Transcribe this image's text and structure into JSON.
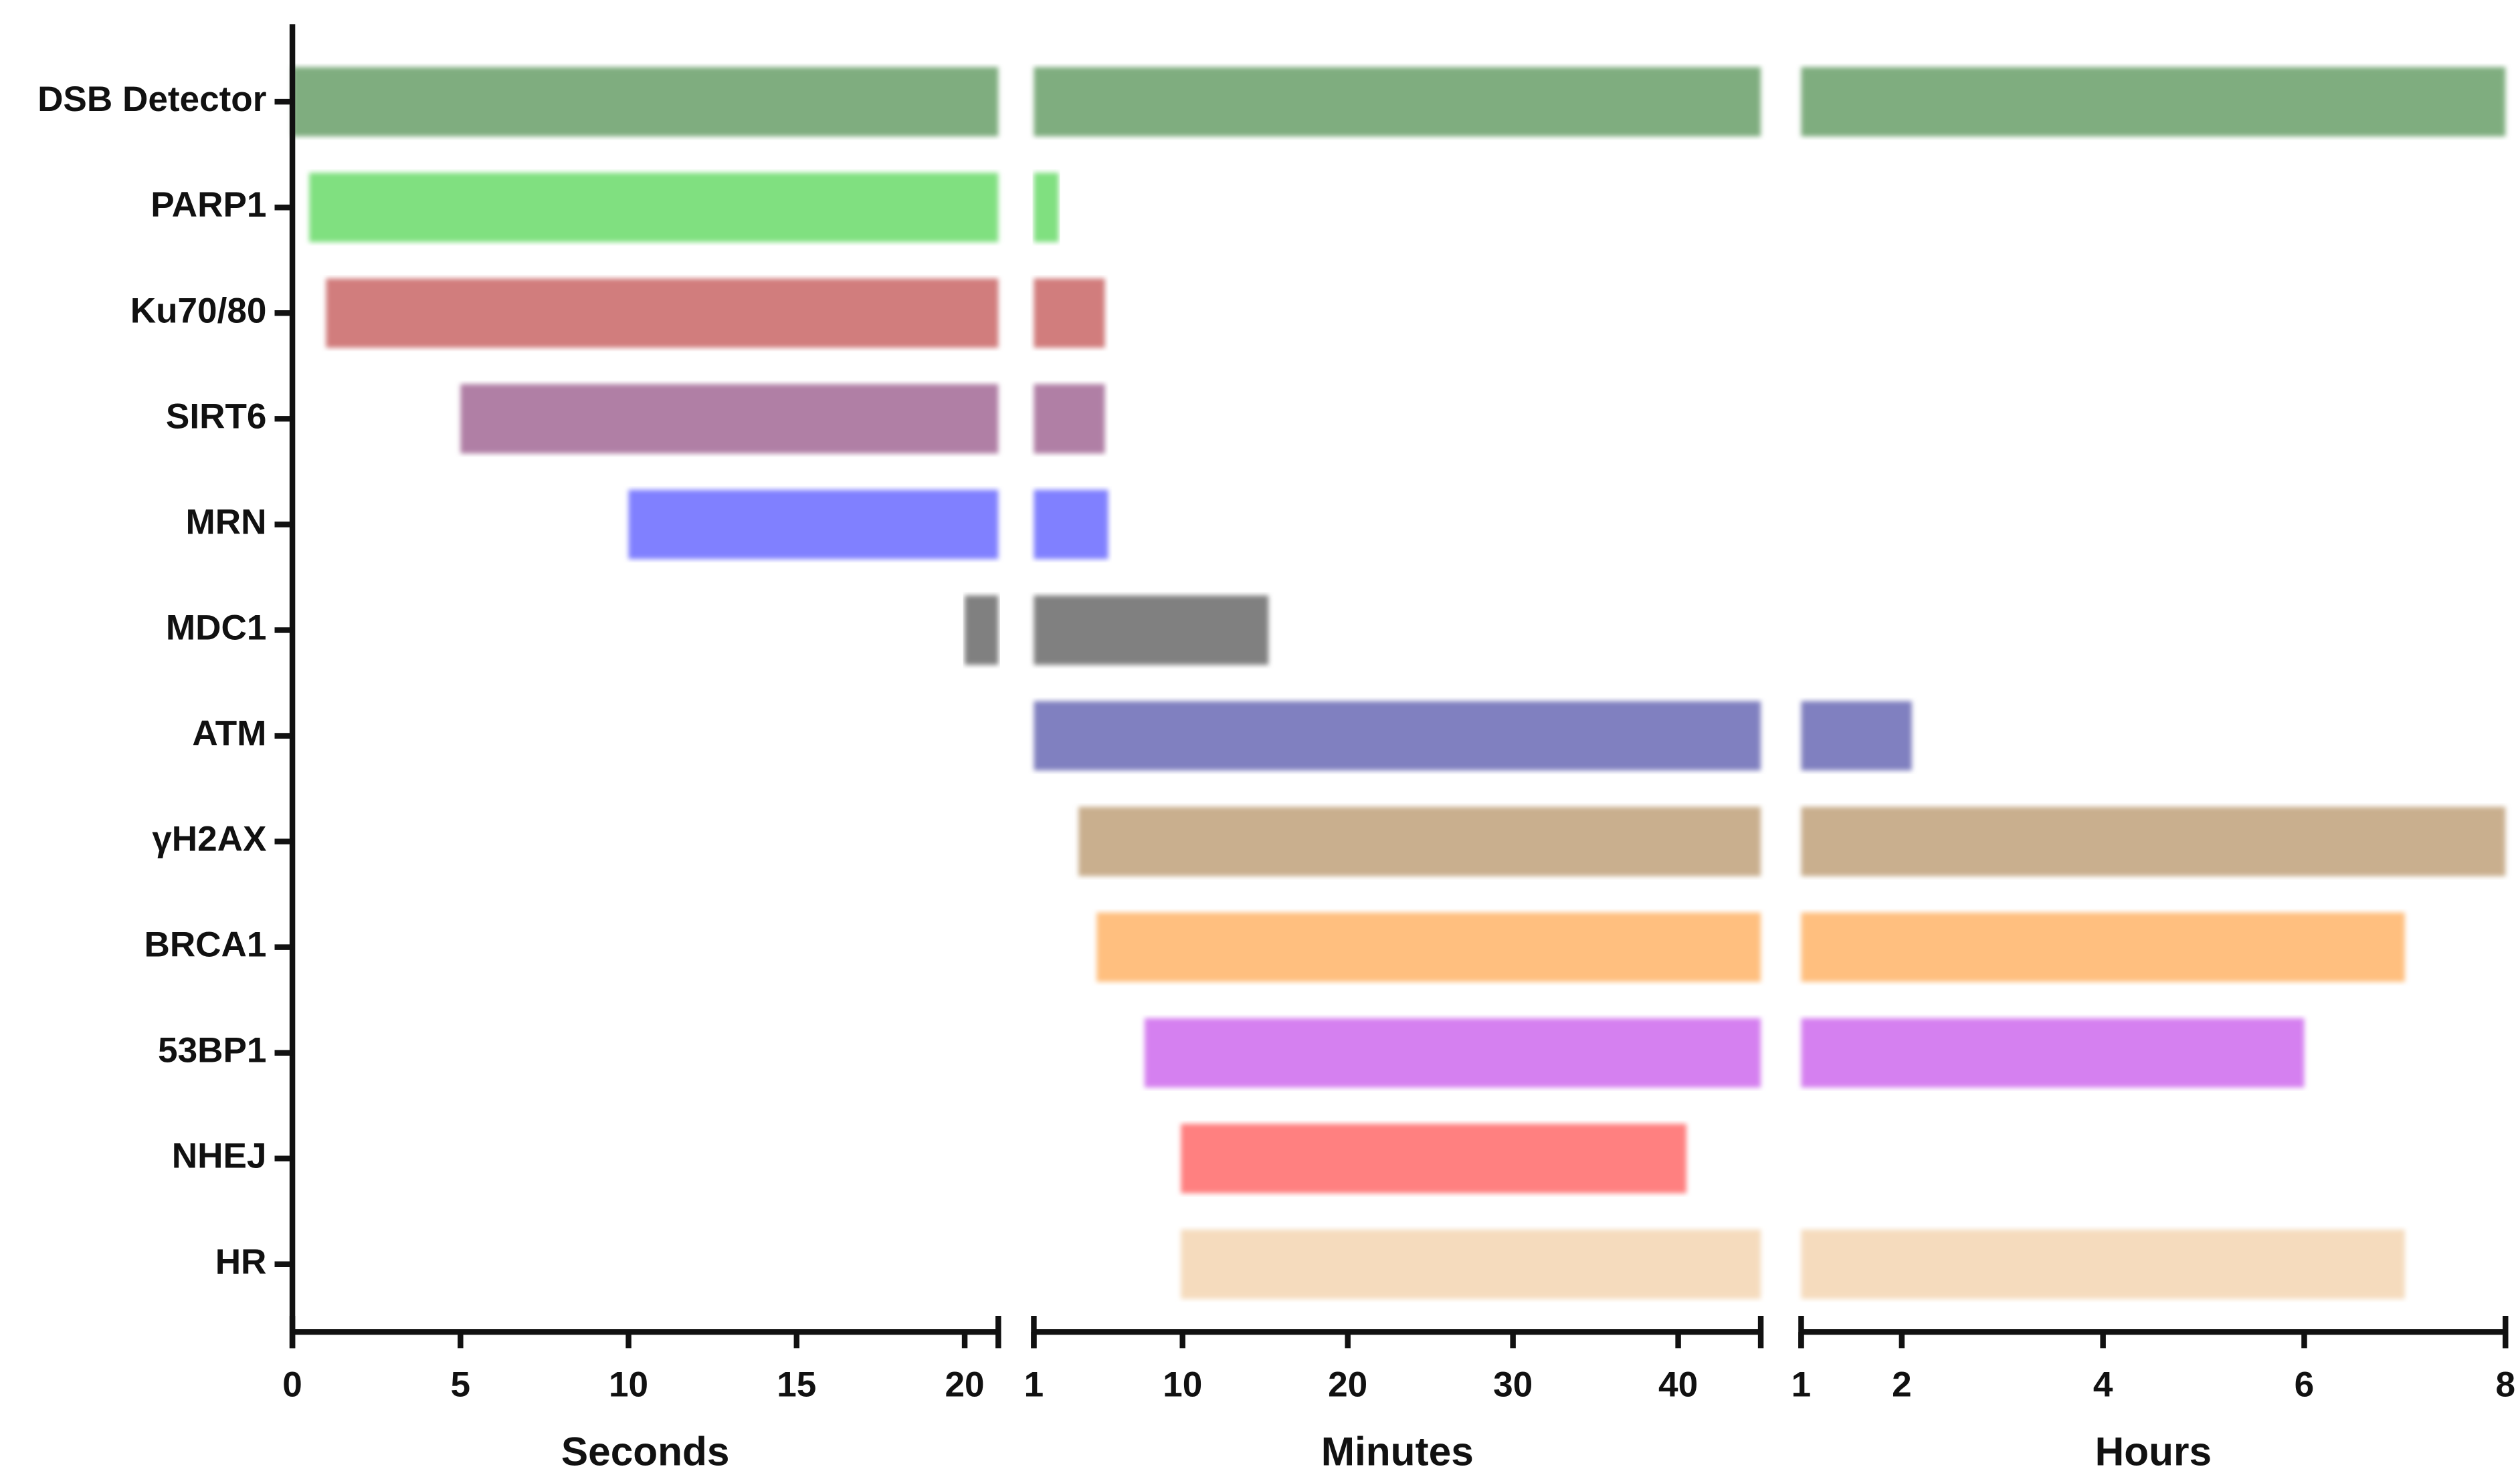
{
  "chart_data": {
    "type": "timeline",
    "categories": [
      "DSB Detector",
      "PARP1",
      "Ku70/80",
      "SIRT6",
      "MRN",
      "MDC1",
      "ATM",
      "γH2AX",
      "BRCA1",
      "53BP1",
      "NHEJ",
      "HR"
    ],
    "panels": [
      {
        "xlabel": "Seconds",
        "xlim": [
          0,
          21
        ],
        "xticks": [
          0,
          5,
          10,
          15,
          20
        ]
      },
      {
        "xlabel": "Minutes",
        "xlim": [
          1,
          45
        ],
        "xticks": [
          1,
          10,
          20,
          30,
          40
        ]
      },
      {
        "xlabel": "Hours",
        "xlim": [
          1,
          8
        ],
        "xticks": [
          1,
          2,
          4,
          6,
          8
        ]
      }
    ],
    "tasks": [
      {
        "color": "#7fad7f",
        "ranges": [
          [
            0,
            21
          ],
          [
            1,
            45
          ],
          [
            1,
            8
          ]
        ]
      },
      {
        "color": "#80e080",
        "ranges": [
          [
            0.5,
            21
          ],
          [
            1,
            2.5
          ],
          null
        ]
      },
      {
        "color": "#d17d7d",
        "ranges": [
          [
            1,
            21
          ],
          [
            1,
            5.3
          ],
          null
        ]
      },
      {
        "color": "#b07fa5",
        "ranges": [
          [
            5,
            21
          ],
          [
            1,
            5.3
          ],
          null
        ]
      },
      {
        "color": "#8080ff",
        "ranges": [
          [
            10,
            21
          ],
          [
            1,
            5.5
          ],
          null
        ]
      },
      {
        "color": "#808080",
        "ranges": [
          [
            20,
            21
          ],
          [
            1,
            15.2
          ],
          null
        ]
      },
      {
        "color": "#8080c0",
        "ranges": [
          null,
          [
            1,
            45
          ],
          [
            1,
            2.1
          ]
        ]
      },
      {
        "color": "#c9af8e",
        "ranges": [
          null,
          [
            3.7,
            45
          ],
          [
            1,
            8
          ]
        ]
      },
      {
        "color": "#ffbf7f",
        "ranges": [
          null,
          [
            4.8,
            45
          ],
          [
            1,
            7
          ]
        ]
      },
      {
        "color": "#d580f0",
        "ranges": [
          null,
          [
            7.7,
            45
          ],
          [
            1,
            6
          ]
        ]
      },
      {
        "color": "#ff8080",
        "ranges": [
          null,
          [
            9.9,
            40.5
          ],
          null
        ]
      },
      {
        "color": "#f5dbbd",
        "ranges": [
          null,
          [
            9.9,
            45
          ],
          [
            1,
            7
          ]
        ]
      }
    ]
  }
}
